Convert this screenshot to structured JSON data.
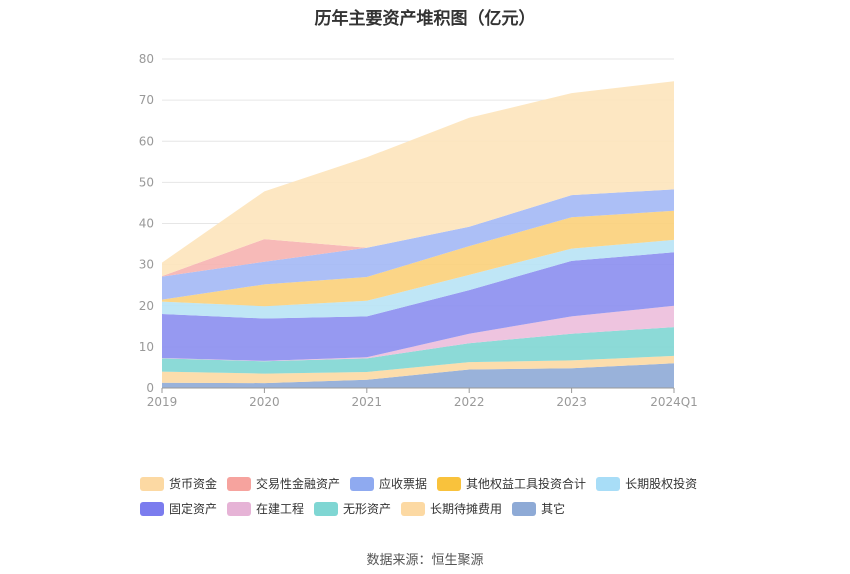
{
  "chart_data": {
    "type": "area",
    "stacked": true,
    "title": "历年主要资产堆积图（亿元）",
    "categories": [
      "2019",
      "2020",
      "2021",
      "2022",
      "2023",
      "2024Q1"
    ],
    "ylim": [
      0,
      80
    ],
    "yticks": [
      0,
      10,
      20,
      30,
      40,
      50,
      60,
      70,
      80
    ],
    "grid": true,
    "legend_position": "bottom",
    "series": [
      {
        "name": "其它",
        "color": "#8eaad6",
        "values": [
          1.3,
          1.2,
          2.0,
          4.5,
          4.8,
          6.0
        ]
      },
      {
        "name": "长期待摊费用",
        "color": "#fcd9a3",
        "values": [
          2.7,
          2.3,
          1.9,
          1.8,
          1.9,
          1.8
        ]
      },
      {
        "name": "无形资产",
        "color": "#7fd6d3",
        "values": [
          3.2,
          3.0,
          3.3,
          4.6,
          6.5,
          7.0
        ]
      },
      {
        "name": "在建工程",
        "color": "#ecbedb",
        "values": [
          0.1,
          0.1,
          0.3,
          2.3,
          4.2,
          5.2
        ]
      },
      {
        "name": "固定资产",
        "color": "#8b8ef0",
        "values": [
          10.7,
          10.3,
          9.9,
          10.6,
          13.5,
          13.0
        ]
      },
      {
        "name": "长期股权投资",
        "color": "#b8e3f5",
        "values": [
          3.0,
          3.0,
          3.8,
          3.7,
          3.0,
          3.0
        ]
      },
      {
        "name": "其他权益工具投资合计",
        "color": "#fbd07a",
        "values": [
          0.5,
          5.3,
          5.8,
          7.0,
          7.6,
          7.1
        ]
      },
      {
        "name": "应收票据",
        "color": "#a3b8f5",
        "values": [
          5.6,
          5.5,
          7.1,
          4.7,
          5.4,
          5.2
        ]
      },
      {
        "name": "交易性金融资产",
        "color": "#f6b3b0",
        "values": [
          0.1,
          5.5,
          0.0,
          0.0,
          0.0,
          0.0
        ]
      },
      {
        "name": "货币资金",
        "color": "#fde4bb",
        "values": [
          3.3,
          11.6,
          22.0,
          26.5,
          24.8,
          26.3
        ]
      }
    ],
    "legend_colors": {
      "货币资金": "#fcd9a3",
      "交易性金融资产": "#f6a39e",
      "应收票据": "#8faaf0",
      "其他权益工具投资合计": "#f9c23c",
      "长期股权投资": "#a8ddf7",
      "固定资产": "#7b7cee",
      "在建工程": "#e6b3d6",
      "无形资产": "#7fd6d3",
      "长期待摊费用": "#fcd9a3",
      "其它": "#8eaad6"
    }
  },
  "legend": {
    "row1": [
      "货币资金",
      "交易性金融资产",
      "应收票据",
      "其他权益工具投资合计",
      "长期股权投资"
    ],
    "row2": [
      "固定资产",
      "在建工程",
      "无形资产",
      "长期待摊费用",
      "其它"
    ]
  },
  "source": "数据来源：恒生聚源"
}
